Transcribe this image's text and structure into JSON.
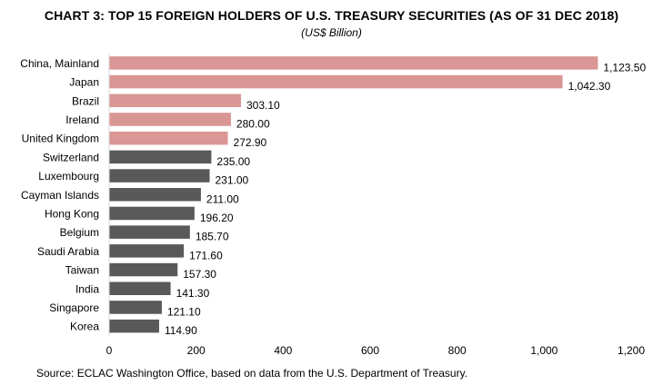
{
  "chart_data": {
    "type": "bar",
    "orientation": "horizontal",
    "title": "CHART 3: TOP 15 FOREIGN HOLDERS OF U.S. TREASURY SECURITIES (AS OF 31 DEC 2018)",
    "subtitle": "(US$ Billion)",
    "categories": [
      "China, Mainland",
      "Japan",
      "Brazil",
      "Ireland",
      "United Kingdom",
      "Switzerland",
      "Luxembourg",
      "Cayman Islands",
      "Hong Kong",
      "Belgium",
      "Saudi Arabia",
      "Taiwan",
      "India",
      "Singapore",
      "Korea"
    ],
    "values": [
      1123.5,
      1042.3,
      303.1,
      280.0,
      272.9,
      235.0,
      231.0,
      211.0,
      196.2,
      185.7,
      171.6,
      157.3,
      141.3,
      121.1,
      114.9
    ],
    "value_labels": [
      "1,123.50",
      "1,042.30",
      "303.10",
      "280.00",
      "272.90",
      "235.00",
      "231.00",
      "211.00",
      "196.20",
      "185.70",
      "171.60",
      "157.30",
      "141.30",
      "121.10",
      "114.90"
    ],
    "bar_colors": [
      "#d99694",
      "#d99694",
      "#d99694",
      "#d99694",
      "#d99694",
      "#595959",
      "#595959",
      "#595959",
      "#595959",
      "#595959",
      "#595959",
      "#595959",
      "#595959",
      "#595959",
      "#595959"
    ],
    "xlim": [
      0,
      1200
    ],
    "xticks": [
      0,
      200,
      400,
      600,
      800,
      1000,
      1200
    ],
    "xtick_labels": [
      "0",
      "200",
      "400",
      "600",
      "800",
      "1,000",
      "1,200"
    ],
    "grid": false,
    "legend": "none"
  },
  "source": "Source:  ECLAC Washington Office, based on data from the U.S. Department of Treasury."
}
